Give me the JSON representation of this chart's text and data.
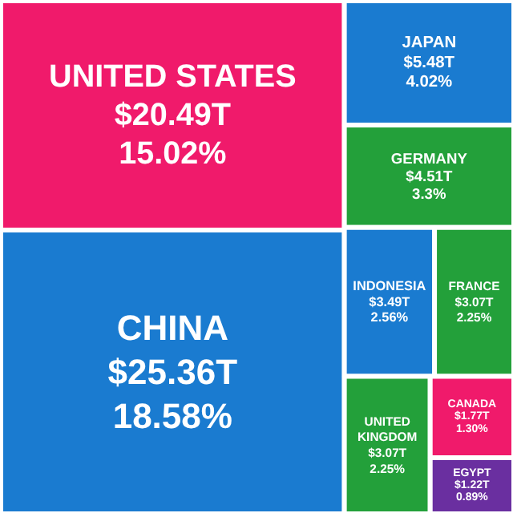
{
  "chart_data": {
    "type": "other",
    "categories": [
      "CHINA",
      "UNITED STATES",
      "JAPAN",
      "GERMANY",
      "INDONESIA",
      "FRANCE",
      "UNITED KINGDOM",
      "CANADA",
      "EGYPT"
    ],
    "series": [
      {
        "colors": [
          "#1a7bd0",
          "#f01a6b",
          "#1a7bd0",
          "#23a03a",
          "#1a7bd0",
          "#23a03a",
          "#23a03a",
          "#f01a6b",
          "#6a2fa0"
        ],
        "values": [
          25.36,
          20.49,
          5.48,
          4.51,
          3.49,
          3.07,
          3.07,
          1.77,
          1.22
        ],
        "value_labels": [
          "$25.36T",
          "$20.49T",
          "$5.48T",
          "$4.51T",
          "$3.49T",
          "$3.07T",
          "$3.07T",
          "$1.77T",
          "$1.22T"
        ]
      },
      {
        "values": [
          18.58,
          15.02,
          4.02,
          3.3,
          2.56,
          2.25,
          2.25,
          1.3,
          0.89
        ],
        "value_labels": [
          "18.58%",
          "15.02%",
          "4.02%",
          "3.3%",
          "2.56%",
          "2.25%",
          "2.25%",
          "1.30%",
          "0.89%"
        ]
      }
    ]
  }
}
